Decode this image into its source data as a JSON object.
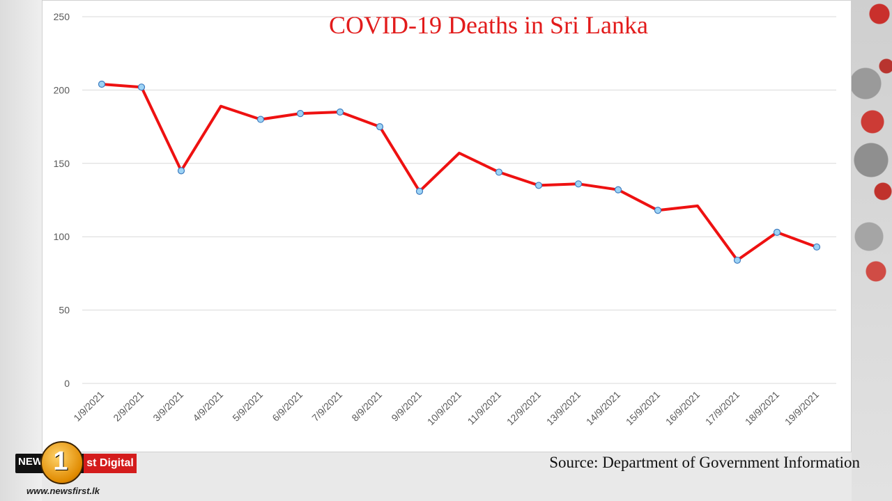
{
  "chart_data": {
    "type": "line",
    "title": "COVID-19 Deaths in Sri Lanka",
    "categories": [
      "1/9/2021",
      "2/9/2021",
      "3/9/2021",
      "4/9/2021",
      "5/9/2021",
      "6/9/2021",
      "7/9/2021",
      "8/9/2021",
      "9/9/2021",
      "10/9/2021",
      "11/9/2021",
      "12/9/2021",
      "13/9/2021",
      "14/9/2021",
      "15/9/2021",
      "16/9/2021",
      "17/9/2021",
      "18/9/2021",
      "19/9/2021"
    ],
    "values": [
      204,
      202,
      145,
      189,
      180,
      184,
      185,
      175,
      131,
      157,
      144,
      135,
      136,
      132,
      118,
      121,
      84,
      103,
      93
    ],
    "markers": [
      true,
      true,
      true,
      false,
      true,
      true,
      true,
      true,
      true,
      false,
      true,
      true,
      true,
      true,
      true,
      false,
      true,
      true,
      true
    ],
    "ylim": [
      0,
      250
    ],
    "yticks": [
      0,
      50,
      100,
      150,
      200,
      250
    ],
    "xlabel": "",
    "ylabel": "",
    "grid": true,
    "line_color": "#ee1111",
    "marker_color": "#9dd3f5"
  },
  "source": "Source: Department of Government Information",
  "logo": {
    "news": "NEWS",
    "one": "1",
    "digital": "st Digital",
    "url": "www.newsfirst.lk"
  }
}
